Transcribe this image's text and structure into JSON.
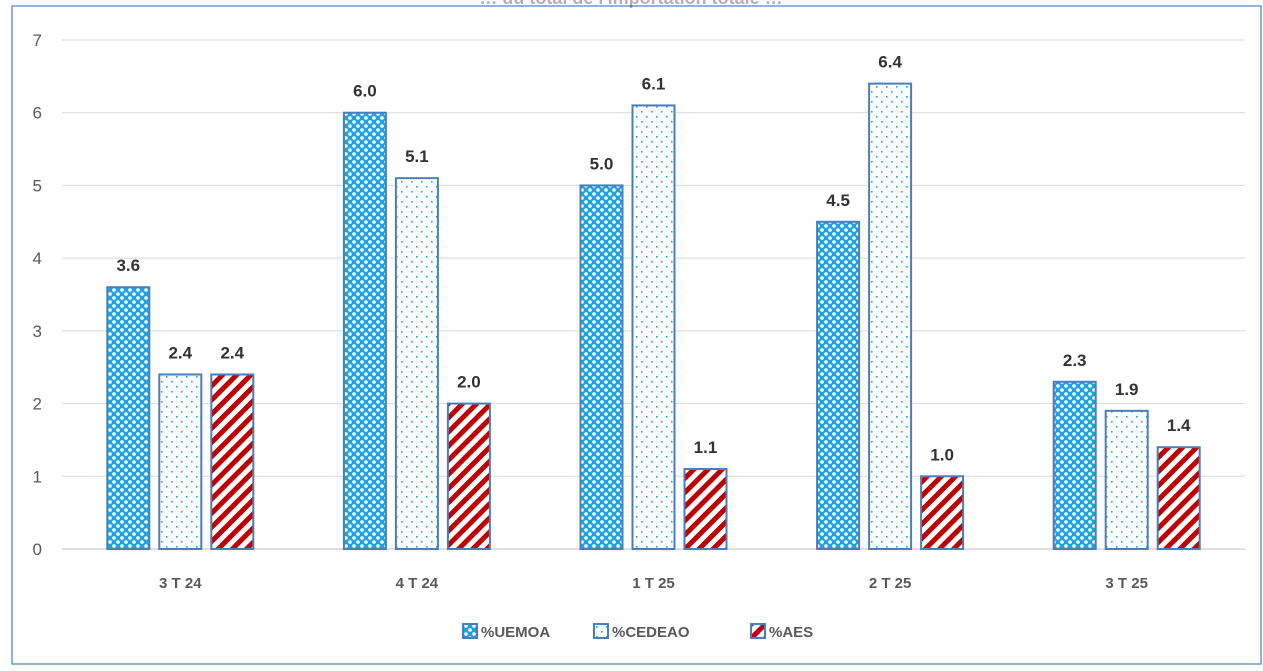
{
  "chart_data": {
    "type": "bar",
    "title_partial": "… du total de l'importation totale …",
    "categories": [
      "3 T 24",
      "4 T 24",
      "1 T 25",
      "2 T 25",
      "3 T 25"
    ],
    "series": [
      {
        "name": "%UEMOA",
        "values": [
          3.6,
          6.0,
          5.0,
          4.5,
          2.3
        ],
        "labels": [
          "3.6",
          "6.0",
          "5.0",
          "4.5",
          "2.3"
        ],
        "color": "#1FA3DE",
        "pattern": "checker"
      },
      {
        "name": "%CEDEAO",
        "values": [
          2.4,
          5.1,
          6.1,
          6.4,
          1.9
        ],
        "labels": [
          "2.4",
          "5.1",
          "6.1",
          "6.4",
          "1.9"
        ],
        "color": "#4A8FC8",
        "pattern": "dots"
      },
      {
        "name": "%AES",
        "values": [
          2.4,
          2.0,
          1.1,
          1.0,
          1.4
        ],
        "labels": [
          "2.4",
          "2.0",
          "1.1",
          "1.0",
          "1.4"
        ],
        "color": "#C00000",
        "pattern": "diagonal-stripes"
      }
    ],
    "y_ticks": [
      "0",
      "1",
      "2",
      "3",
      "4",
      "5",
      "6",
      "7"
    ],
    "ylim": [
      0,
      7
    ],
    "grid": true,
    "legend_position": "bottom",
    "border_color": "#4A7EBB",
    "label_color": "#333333"
  }
}
